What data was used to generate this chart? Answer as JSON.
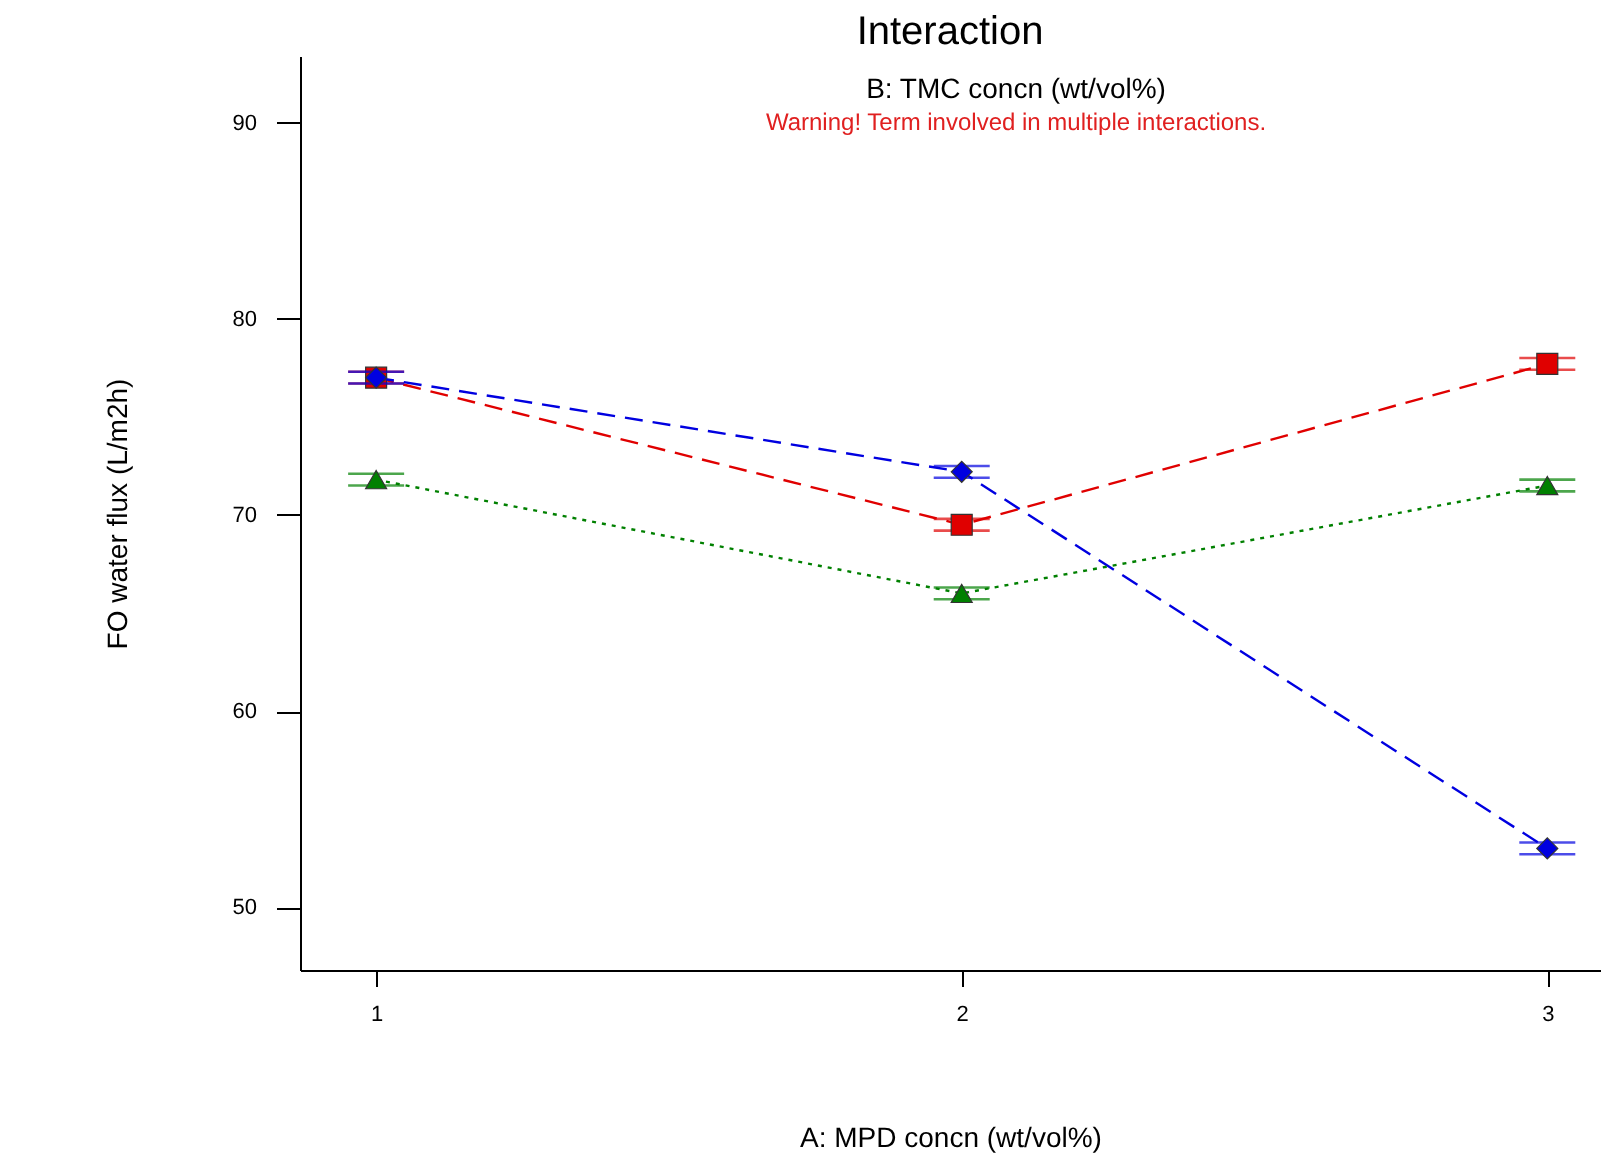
{
  "chart_data": {
    "type": "line",
    "title": "Interaction",
    "subtitle": "B: TMC concn (wt/vol%)",
    "xlabel": "A: MPD concn (wt/vol%)",
    "ylabel": "FO water flux (L/m2h)",
    "annotations": [
      "Warning! Term involved in multiple interactions."
    ],
    "x": [
      1,
      2,
      3
    ],
    "xlim": [
      0.87,
      3.09
    ],
    "xticks": [
      1,
      2,
      3
    ],
    "ylim": [
      46.8,
      93.4
    ],
    "yticks": [
      50,
      60,
      70,
      80,
      90
    ],
    "grid": false,
    "series": [
      {
        "color": "#e00000",
        "values": [
          77.0,
          69.5,
          77.7
        ],
        "errors": [
          0.3,
          0.3,
          0.3
        ],
        "marker": "square",
        "line_style": "dashed"
      },
      {
        "color": "#0000e0",
        "values": [
          77.0,
          72.2,
          53.0
        ],
        "errors": [
          0.3,
          0.3,
          0.3
        ],
        "marker": "diamond",
        "line_style": "dashed"
      },
      {
        "color": "#008000",
        "values": [
          71.8,
          66.0,
          71.5
        ],
        "errors": [
          0.3,
          0.3,
          0.3
        ],
        "marker": "triangle",
        "line_style": "dotted"
      }
    ]
  }
}
